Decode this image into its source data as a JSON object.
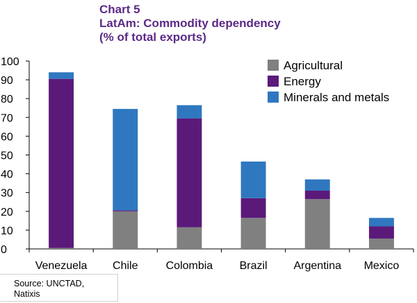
{
  "header": {
    "chart_number": "Chart 5",
    "title": "LatAm: Commodity dependency",
    "subtitle": "(% of total exports)"
  },
  "source": "Source: UNCTAD, Natixis",
  "chart_data": {
    "type": "bar",
    "stacked": true,
    "categories": [
      "Venezuela",
      "Chile",
      "Colombia",
      "Brazil",
      "Argentina",
      "Mexico"
    ],
    "series": [
      {
        "name": "Agricultural",
        "color": "#808080",
        "values": [
          0.5,
          20,
          11.5,
          16.5,
          26.5,
          5.5
        ]
      },
      {
        "name": "Energy",
        "color": "#5b1a7a",
        "values": [
          90,
          0.5,
          58,
          10.5,
          4.5,
          6.5
        ]
      },
      {
        "name": "Minerals and metals",
        "color": "#2f78c0",
        "values": [
          3.5,
          54,
          7,
          19.5,
          6,
          4.5
        ]
      }
    ],
    "ylim": [
      0,
      100
    ],
    "yticks": [
      0,
      10,
      20,
      30,
      40,
      50,
      60,
      70,
      80,
      90,
      100
    ],
    "legend_position": "top-right",
    "grid": false
  }
}
